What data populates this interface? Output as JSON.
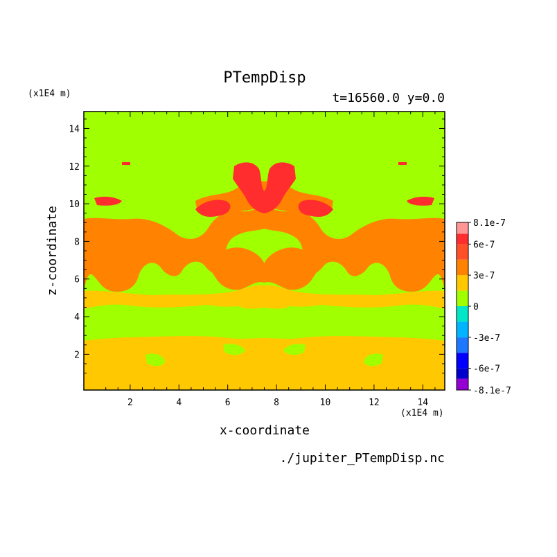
{
  "chart_data": {
    "type": "heatmap",
    "title": "PTempDisp",
    "subtitle": "t=16560.0 y=0.0",
    "xlabel": "x-coordinate",
    "ylabel": "z-coordinate",
    "x_unit": "(x1E4 m)",
    "y_unit": "(x1E4 m)",
    "source": "./jupiter_PTempDisp.nc",
    "xlim": [
      0.1,
      14.9
    ],
    "ylim": [
      0.1,
      14.9
    ],
    "x_ticks": [
      2,
      4,
      6,
      8,
      10,
      12,
      14
    ],
    "y_ticks": [
      2,
      4,
      6,
      8,
      10,
      12,
      14
    ],
    "colorbar": {
      "levels": [
        -8.1e-07,
        -7e-07,
        -6e-07,
        -4.5e-07,
        -3e-07,
        -1.5e-07,
        0,
        1.5e-07,
        3e-07,
        4.5e-07,
        6e-07,
        7e-07,
        8.1e-07
      ],
      "colors": [
        "#9400d3",
        "#0000cd",
        "#0000ff",
        "#1e78ff",
        "#00b4ff",
        "#00e6c8",
        "#a0ff00",
        "#ffc800",
        "#ff8200",
        "#ff5028",
        "#ff2d2d",
        "#ff9696"
      ],
      "tick_labels": [
        "8.1e-7",
        "6e-7",
        "3e-7",
        "0",
        "-3e-7",
        "-6e-7",
        "-8.1e-7"
      ]
    }
  }
}
